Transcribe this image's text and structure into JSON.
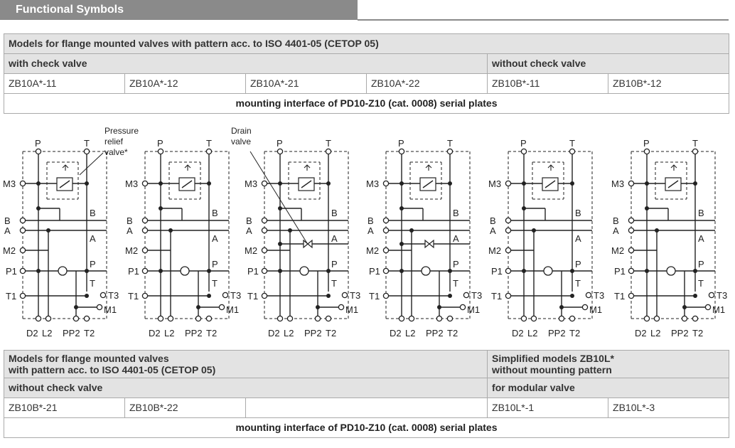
{
  "header": {
    "title": "Functional Symbols"
  },
  "top_table": {
    "title": "Models for flange mounted valves with pattern acc. to ISO 4401-05 (CETOP 05)",
    "group_with": "with check valve",
    "group_without": "without check valve",
    "models": [
      "ZB10A*-11",
      "ZB10A*-12",
      "ZB10A*-21",
      "ZB10A*-22",
      "ZB10B*-11",
      "ZB10B*-12"
    ],
    "footer": "mounting interface of PD10-Z10 (cat. 0008) serial plates"
  },
  "diagram_labels": {
    "P": "P",
    "T": "T",
    "M3": "M3",
    "B": "B",
    "A": "A",
    "M2": "M2",
    "P1": "P1",
    "T1": "T1",
    "T3": "T3",
    "M1": "M1",
    "D2": "D2",
    "L2": "L2",
    "PP2": "PP2",
    "T2": "T2",
    "callout_relief": [
      "Pressure",
      "relief",
      "valve*"
    ],
    "callout_drain": [
      "Drain",
      "valve"
    ]
  },
  "bottom_table": {
    "title_left_line1": "Models for flange mounted valves",
    "title_left_line2": "with pattern acc. to ISO 4401-05 (CETOP 05)",
    "title_right_line1": "Simplified models ZB10L*",
    "title_right_line2": "without mounting pattern",
    "group_left": "without check valve",
    "group_right": "for modular valve",
    "models_left": [
      "ZB10B*-21",
      "ZB10B*-22"
    ],
    "models_right": [
      "ZB10L*-1",
      "ZB10L*-3"
    ],
    "footer": "mounting interface of PD10-Z10 (cat. 0008) serial plates"
  }
}
